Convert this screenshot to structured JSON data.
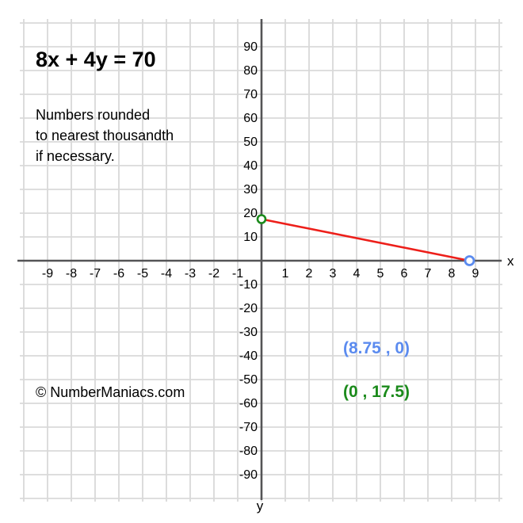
{
  "title": "8x + 4y = 70",
  "note_lines": [
    "Numbers rounded",
    "to nearest thousandth",
    "if necessary."
  ],
  "copyright": "© NumberManiacs.com",
  "axis_letters": {
    "x": "x",
    "y": "y"
  },
  "intercept_labels": {
    "x_intercept": "(8.75 , 0)",
    "y_intercept": "(0 , 17.5)"
  },
  "colors": {
    "line": "#ed1f1a",
    "x_intercept_point": "#5b8bef",
    "y_intercept_point": "#1b8a1b",
    "x_intercept_text": "#5b8bef",
    "y_intercept_text": "#1b8a1b",
    "grid": "#d9d9d9",
    "axis": "#545456",
    "text": "#000000"
  },
  "chart_data": {
    "type": "line",
    "title": "8x + 4y = 70",
    "equation": "8x + 4y = 70",
    "series": [
      {
        "name": "8x + 4y = 70",
        "points": [
          [
            0,
            17.5
          ],
          [
            8.75,
            0
          ]
        ]
      }
    ],
    "intercepts": {
      "x_intercept": [
        8.75,
        0
      ],
      "y_intercept": [
        0,
        17.5
      ]
    },
    "xlabel": "x",
    "ylabel": "y",
    "xlim": [
      -10,
      10
    ],
    "ylim": [
      -100,
      100
    ],
    "x_tick_step": 1,
    "y_tick_step": 10,
    "x_ticks": [
      -9,
      -8,
      -7,
      -6,
      -5,
      -4,
      -3,
      -2,
      -1,
      1,
      2,
      3,
      4,
      5,
      6,
      7,
      8,
      9
    ],
    "y_ticks": [
      90,
      80,
      70,
      60,
      50,
      40,
      30,
      20,
      10,
      -10,
      -20,
      -30,
      -40,
      -50,
      -60,
      -70,
      -80,
      -90
    ],
    "grid": true,
    "legend": false
  }
}
